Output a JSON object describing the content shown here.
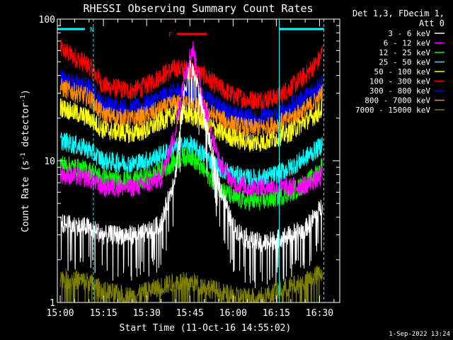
{
  "chart_data": {
    "type": "line",
    "title": "RHESSI Observing Summary Count Rates",
    "xlabel": "Start Time (11-Oct-16 14:55:02)",
    "ylabel_main": "Count Rate (s",
    "ylabel_sup": "-1",
    "ylabel_mid": " detector",
    "ylabel_sup2": "-1",
    "ylabel_end": ")",
    "y_scale": "log",
    "ylim": [
      1,
      100
    ],
    "y_ticks": [
      {
        "value": 1,
        "label": "1"
      },
      {
        "value": 10,
        "label": "10"
      },
      {
        "value": 100,
        "label": "100"
      }
    ],
    "xlim_minutes": [
      -1.0,
      97.0
    ],
    "x_ticks": [
      {
        "minute": 0,
        "label": "15:00"
      },
      {
        "minute": 15,
        "label": "15:15"
      },
      {
        "minute": 30,
        "label": "15:30"
      },
      {
        "minute": 45,
        "label": "15:45"
      },
      {
        "minute": 60,
        "label": "16:00"
      },
      {
        "minute": 75,
        "label": "16:15"
      },
      {
        "minute": 90,
        "label": "16:30"
      }
    ],
    "legend_header": [
      "Det 1,3, FDecim 1,",
      "Att 0"
    ],
    "legend_position": "right",
    "series": [
      {
        "name": "3 - 6 keV",
        "color": "#ffffff",
        "x": [
          0,
          10,
          15,
          25,
          30,
          35,
          40,
          43,
          45,
          47,
          50,
          55,
          60,
          65,
          70,
          75,
          80,
          85,
          90,
          91
        ],
        "values": [
          3.6,
          3.4,
          3.0,
          3.0,
          3.1,
          3.6,
          8,
          30,
          45,
          40,
          20,
          7,
          3.4,
          2.8,
          2.6,
          2.8,
          3.0,
          3.3,
          4.5,
          5.0
        ]
      },
      {
        "name": "6 - 12 keV",
        "color": "#ff00ff",
        "x": [
          0,
          10,
          15,
          25,
          30,
          35,
          40,
          43,
          45,
          46,
          47,
          50,
          55,
          60,
          65,
          70,
          75,
          80,
          85,
          90,
          91
        ],
        "values": [
          8,
          7.5,
          6.5,
          6.5,
          6.8,
          7.5,
          16,
          40,
          55,
          62,
          50,
          25,
          10,
          7,
          6.5,
          6.5,
          6.5,
          6.5,
          6.8,
          7.5,
          8
        ]
      },
      {
        "name": "12 - 25 keV",
        "color": "#00ff00",
        "x": [
          0,
          10,
          15,
          25,
          30,
          35,
          40,
          45,
          50,
          55,
          60,
          65,
          70,
          75,
          80,
          85,
          90,
          91
        ],
        "values": [
          9.5,
          8.5,
          7.5,
          7.2,
          7.5,
          8.5,
          10,
          11,
          8.5,
          6.5,
          5.5,
          5.2,
          5.2,
          5.5,
          6.0,
          6.8,
          8.5,
          9.5
        ]
      },
      {
        "name": "25 - 50 keV",
        "color": "#00ffff",
        "x": [
          0,
          10,
          15,
          25,
          30,
          35,
          40,
          45,
          50,
          55,
          60,
          65,
          70,
          75,
          80,
          85,
          90,
          91
        ],
        "values": [
          14,
          12,
          10,
          9.5,
          10,
          11,
          12.5,
          13,
          11,
          9,
          8,
          7.5,
          7.5,
          8,
          9,
          10.5,
          12.5,
          13.5
        ]
      },
      {
        "name": "50 - 100 keV",
        "color": "#ffff00",
        "x": [
          0,
          10,
          15,
          25,
          30,
          35,
          40,
          45,
          50,
          55,
          60,
          65,
          70,
          75,
          80,
          85,
          90,
          91
        ],
        "values": [
          24,
          20,
          16.5,
          15.5,
          16.5,
          19,
          21,
          21,
          19,
          16,
          14.5,
          13.5,
          13.5,
          14.5,
          16,
          19,
          22,
          24
        ]
      },
      {
        "name": "100 - 300 keV",
        "color": "#ff0000",
        "x": [
          0,
          10,
          15,
          25,
          30,
          35,
          40,
          45,
          50,
          55,
          60,
          65,
          70,
          75,
          80,
          85,
          90,
          91
        ],
        "values": [
          62,
          47,
          34,
          31,
          34,
          40,
          45,
          44,
          40,
          33,
          29,
          27,
          27,
          28,
          33,
          40,
          52,
          60
        ]
      },
      {
        "name": "300 - 800 keV",
        "color": "#0000ff",
        "x": [
          0,
          10,
          15,
          25,
          30,
          35,
          40,
          45,
          50,
          55,
          60,
          65,
          70,
          75,
          80,
          85,
          90,
          91
        ],
        "values": [
          38,
          33,
          25,
          23,
          25,
          28,
          31,
          31,
          28,
          24,
          21,
          20,
          20,
          21,
          24,
          28,
          34,
          37
        ]
      },
      {
        "name": "800 - 7000 keV",
        "color": "#ff8c00",
        "x": [
          0,
          10,
          15,
          25,
          30,
          35,
          40,
          45,
          50,
          55,
          60,
          65,
          70,
          75,
          80,
          85,
          90,
          91
        ],
        "values": [
          33,
          28,
          21,
          19.5,
          21,
          23,
          25.5,
          25,
          23,
          20,
          18,
          17,
          17,
          18,
          20,
          23,
          28,
          31
        ]
      },
      {
        "name": "7000 - 15000 keV",
        "color": "#808000",
        "x": [
          0,
          10,
          15,
          25,
          30,
          35,
          40,
          45,
          50,
          55,
          60,
          65,
          70,
          75,
          80,
          85,
          90,
          91
        ],
        "values": [
          1.5,
          1.4,
          1.2,
          1.1,
          1.2,
          1.3,
          1.4,
          1.4,
          1.3,
          1.2,
          1.1,
          1.1,
          1.1,
          1.2,
          1.3,
          1.4,
          1.6,
          1.7
        ]
      }
    ],
    "annotations": [
      {
        "label": "N",
        "start_minute": -1.0,
        "end_minute": 11.5,
        "color": "#00ffff"
      },
      {
        "label": "",
        "start_minute": 76.0,
        "end_minute": 91.5,
        "color": "#00ffff"
      },
      {
        "label": "F",
        "start_minute": 37.5,
        "end_minute": 51.0,
        "color": "#ff0000"
      }
    ],
    "vertical_markers": [
      {
        "minute": 11.5,
        "style": "dashed",
        "color": "#00ffff"
      },
      {
        "minute": 76.0,
        "style": "solid",
        "color": "#00ffff"
      },
      {
        "minute": 91.5,
        "style": "dashed",
        "color": "#00ffff"
      }
    ]
  },
  "footer_date": "1-Sep-2022 13:24"
}
